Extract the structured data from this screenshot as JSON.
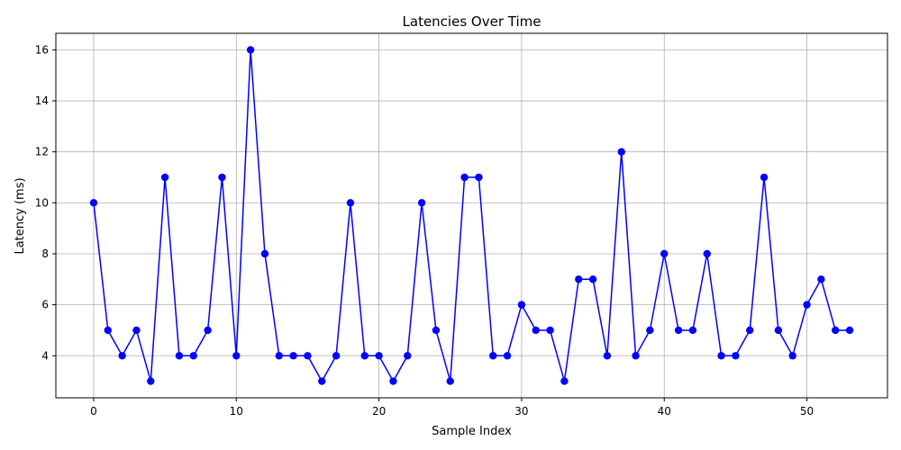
{
  "chart_data": {
    "type": "line",
    "title": "Latencies Over Time",
    "xlabel": "Sample Index",
    "ylabel": "Latency (ms)",
    "xlim": [
      -2.65,
      55.65
    ],
    "ylim": [
      2.35,
      16.65
    ],
    "xticks": [
      0,
      10,
      20,
      30,
      40,
      50
    ],
    "yticks": [
      4,
      6,
      8,
      10,
      12,
      14,
      16
    ],
    "grid": true,
    "series": [
      {
        "color": "#0000ff",
        "marker": "circle",
        "x": [
          0,
          1,
          2,
          3,
          4,
          5,
          6,
          7,
          8,
          9,
          10,
          11,
          12,
          13,
          14,
          15,
          16,
          17,
          18,
          19,
          20,
          21,
          22,
          23,
          24,
          25,
          26,
          27,
          28,
          29,
          30,
          31,
          32,
          33,
          34,
          35,
          36,
          37,
          38,
          39,
          40,
          41,
          42,
          43,
          44,
          45,
          46,
          47,
          48,
          49,
          50,
          51,
          52,
          53
        ],
        "values": [
          10,
          5,
          4,
          5,
          3,
          11,
          4,
          4,
          5,
          11,
          4,
          16,
          8,
          4,
          4,
          4,
          3,
          4,
          10,
          4,
          4,
          3,
          4,
          10,
          5,
          3,
          11,
          11,
          4,
          4,
          6,
          5,
          5,
          3,
          7,
          7,
          4,
          12,
          4,
          5,
          8,
          5,
          5,
          8,
          4,
          4,
          5,
          11,
          5,
          4,
          6,
          7,
          5,
          5
        ]
      }
    ]
  }
}
